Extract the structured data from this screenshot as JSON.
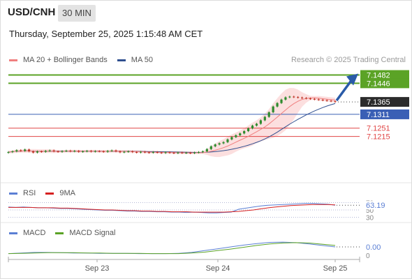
{
  "header": {
    "symbol": "USD/CNH",
    "timeframe": "30 MIN",
    "datetime": "Thursday, September 25, 2025 1:15:48 AM CET"
  },
  "legend": {
    "ma20_label": "MA 20 + Bollinger Bands",
    "ma50_label": "MA 50",
    "credit": "Research © 2025 Trading Central"
  },
  "colors": {
    "ma20": "#f07f7f",
    "ma50": "#2f4f8f",
    "bollinger_fill": "#fbd9d9",
    "resistance": "#5ba326",
    "support": "#3a5fb5",
    "minor_resistance": "#e04545",
    "candle_up": "#2e8b2e",
    "candle_down": "#c0392b",
    "arrow": "#2a5ba8",
    "rsi": "#5b7fd4",
    "rsi_ma": "#d62020",
    "macd": "#5b7fd4",
    "macd_signal": "#5ba326"
  },
  "chart_data": [
    {
      "type": "line",
      "panel": "price",
      "title": "USD/CNH",
      "subtitle": "30 MIN",
      "ylim": [
        7.105,
        7.152
      ],
      "x_tick_labels": [
        "Sep 23",
        "Sep 24",
        "Sep 25"
      ],
      "candles_close": [
        7.1147,
        7.115,
        7.1155,
        7.1152,
        7.1158,
        7.115,
        7.1145,
        7.115,
        7.1148,
        7.1152,
        7.1154,
        7.115,
        7.1148,
        7.1151,
        7.1153,
        7.115,
        7.1152,
        7.1148,
        7.115,
        7.1152,
        7.1149,
        7.1151,
        7.115,
        7.1148,
        7.1152,
        7.1154,
        7.115,
        7.1146,
        7.1148,
        7.115,
        7.1147,
        7.1145,
        7.1148,
        7.1146,
        7.1144,
        7.1147,
        7.1145,
        7.1143,
        7.1146,
        7.1144,
        7.1142,
        7.1145,
        7.1143,
        7.1144,
        7.1142,
        7.1145,
        7.1147,
        7.115,
        7.116,
        7.1172,
        7.118,
        7.1185,
        7.119,
        7.1202,
        7.1212,
        7.122,
        7.1228,
        7.1238,
        7.125,
        7.1262,
        7.127,
        7.1285,
        7.13,
        7.132,
        7.1345,
        7.136,
        7.1375,
        7.1385,
        7.1388,
        7.1386,
        7.1384,
        7.1382,
        7.138,
        7.1378,
        7.1376,
        7.1374,
        7.1372,
        7.137,
        7.1368,
        7.1365
      ],
      "current_price": "7.1365",
      "levels": [
        {
          "label": "7.1482",
          "value": 7.1482,
          "kind": "resistance"
        },
        {
          "label": "7.1446",
          "value": 7.1446,
          "kind": "resistance"
        },
        {
          "label": "7.1311",
          "value": 7.1311,
          "kind": "support"
        },
        {
          "label": "7.1251",
          "value": 7.1251,
          "kind": "minor_resistance"
        },
        {
          "label": "7.1215",
          "value": 7.1215,
          "kind": "minor_resistance"
        }
      ],
      "legend": [
        "MA 20 + Bollinger Bands",
        "MA 50"
      ],
      "legend_position": "top-left",
      "grid": false
    },
    {
      "type": "line",
      "panel": "rsi",
      "legend": [
        "RSI",
        "9MA"
      ],
      "series": [
        {
          "name": "RSI",
          "values": [
            58,
            57,
            58,
            57,
            56,
            56,
            55,
            54,
            54,
            53,
            52,
            51,
            50,
            49,
            49,
            48,
            47,
            47,
            46,
            46,
            45,
            45,
            44,
            44,
            43,
            44,
            43,
            42,
            42,
            43,
            44,
            52,
            55,
            58,
            61,
            63,
            64,
            65,
            66,
            67,
            68,
            68,
            67,
            66,
            63
          ]
        },
        {
          "name": "9MA",
          "values": [
            57,
            57,
            57,
            57,
            56,
            56,
            56,
            55,
            55,
            54,
            53,
            52,
            51,
            50,
            50,
            49,
            48,
            48,
            47,
            47,
            46,
            46,
            45,
            45,
            45,
            44,
            44,
            44,
            44,
            44,
            45,
            46,
            48,
            50,
            53,
            56,
            58,
            60,
            62,
            63,
            64,
            65,
            65,
            65,
            64
          ]
        }
      ],
      "current_label": "63.19",
      "tick_labels": [
        "70",
        "50",
        "30"
      ],
      "ylim": [
        25,
        75
      ]
    },
    {
      "type": "line",
      "panel": "macd",
      "legend": [
        "MACD",
        "MACD Signal"
      ],
      "series": [
        {
          "name": "MACD",
          "values": [
            0,
            0.0002,
            0.0004,
            0.0004,
            0.0003,
            0.0002,
            0.0002,
            0.0001,
            0.0001,
            0.0001,
            0.0,
            0.0,
            0.0,
            0.0001,
            0.0004,
            0.001,
            0.0016,
            0.0022,
            0.0028,
            0.0033,
            0.0037,
            0.0038,
            0.0036,
            0.0032,
            0.0027,
            0.0022
          ]
        },
        {
          "name": "MACD Signal",
          "values": [
            0,
            0.0001,
            0.0002,
            0.0003,
            0.0003,
            0.0003,
            0.0002,
            0.0002,
            0.0001,
            0.0001,
            0.0001,
            0.0,
            0.0,
            0.0,
            0.0002,
            0.0005,
            0.001,
            0.0015,
            0.0021,
            0.0027,
            0.0032,
            0.0035,
            0.0036,
            0.0035,
            0.0031,
            0.0027
          ]
        }
      ],
      "current_label": "0.00",
      "tick_labels": [
        "0"
      ],
      "ylim": [
        -0.001,
        0.0045
      ]
    }
  ]
}
